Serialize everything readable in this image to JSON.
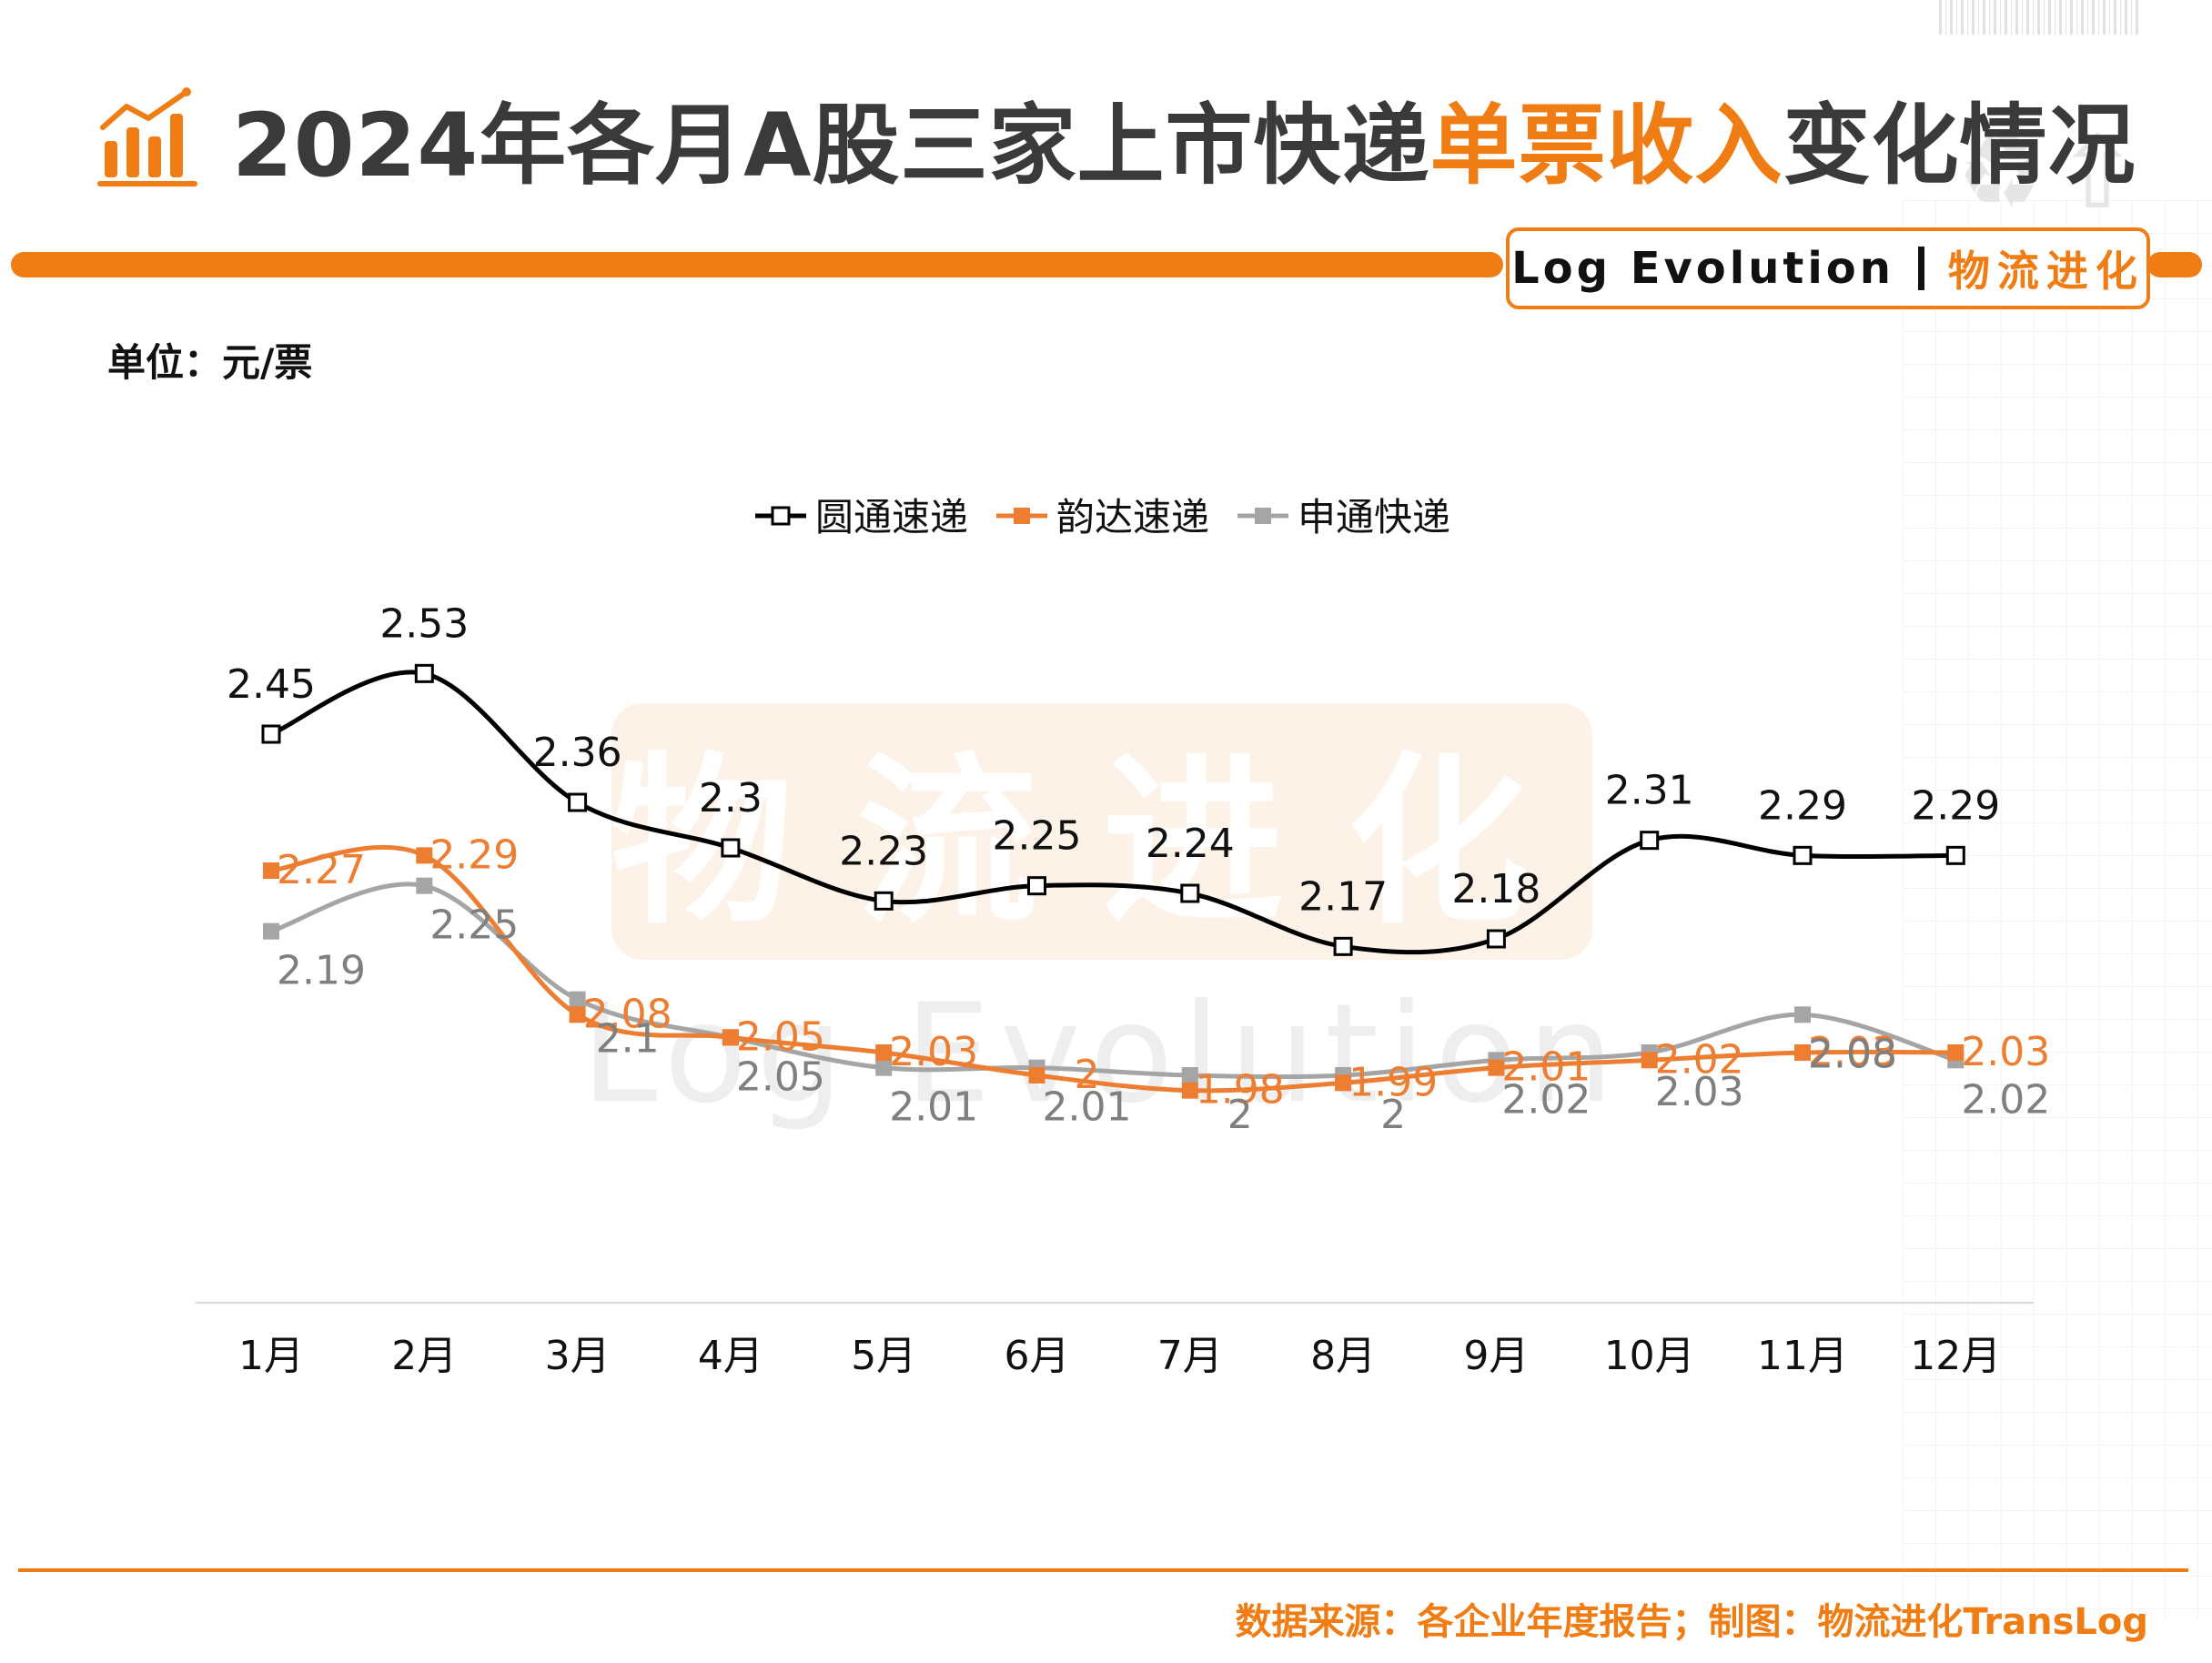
{
  "header": {
    "title_prefix": "2024年各月A股三家上市快递",
    "title_highlight": "单票收入",
    "title_suffix": "变化情况",
    "brand_en": "Log Evolution",
    "brand_cn": "物流进化"
  },
  "unit_label": "单位：元/票",
  "watermark": {
    "cn": "物流进化",
    "en": "Log Evolution"
  },
  "footer": {
    "source": "数据来源：各企业年度报告；制图：物流进化TransLog"
  },
  "colors": {
    "accent": "#f07d14",
    "yto": "#000000",
    "yunda": "#ed7d31",
    "sto": "#a5a5a5"
  },
  "chart_data": {
    "type": "line",
    "categories": [
      "1月",
      "2月",
      "3月",
      "4月",
      "5月",
      "6月",
      "7月",
      "8月",
      "9月",
      "10月",
      "11月",
      "12月"
    ],
    "series": [
      {
        "name": "圆通速递",
        "color": "#000000",
        "marker": "hollow-square",
        "values": [
          2.45,
          2.53,
          2.36,
          2.3,
          2.23,
          2.25,
          2.24,
          2.17,
          2.18,
          2.31,
          2.29,
          2.29
        ],
        "labels": [
          "2.45",
          "2.53",
          "2.36",
          "2.3",
          "2.23",
          "2.25",
          "2.24",
          "2.17",
          "2.18",
          "2.31",
          "2.29",
          "2.29"
        ]
      },
      {
        "name": "韵达速递",
        "color": "#ed7d31",
        "marker": "filled-square",
        "values": [
          2.27,
          2.29,
          2.08,
          2.05,
          2.03,
          2,
          1.98,
          1.99,
          2.01,
          2.02,
          2.03,
          2.03
        ],
        "labels": [
          "2.27",
          "2.29",
          "2.08",
          "2.05",
          "2.03",
          "2",
          "1.98",
          "1.99",
          "2.01",
          "2.02",
          "2.03",
          "2.03"
        ]
      },
      {
        "name": "申通快递",
        "color": "#a5a5a5",
        "marker": "filled-square",
        "values": [
          2.19,
          2.25,
          2.1,
          2.05,
          2.01,
          2.01,
          2,
          2,
          2.02,
          2.03,
          2.08,
          2.02
        ],
        "labels": [
          "2.19",
          "2.25",
          "2.1",
          "2.05",
          "2.01",
          "2.01",
          "2",
          "2",
          "2.02",
          "2.03",
          "2.08",
          "2.02"
        ]
      }
    ],
    "legend": "top-center",
    "grid": false,
    "y_axis_visible": false
  }
}
